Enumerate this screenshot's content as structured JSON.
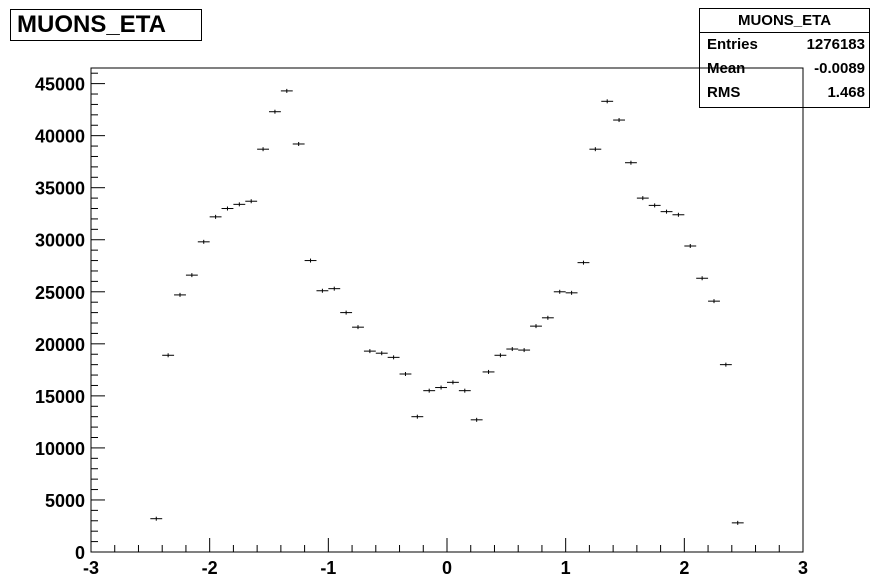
{
  "histogram": {
    "title": "MUONS_ETA",
    "stats": {
      "title": "MUONS_ETA",
      "rows": [
        {
          "label": "Entries",
          "value": "1276183"
        },
        {
          "label": "Mean",
          "value": "-0.0089"
        },
        {
          "label": "RMS",
          "value": "1.468"
        }
      ]
    }
  },
  "chart_data": {
    "type": "scatter",
    "title": "MUONS_ETA",
    "xlabel": "",
    "ylabel": "",
    "xlim": [
      -3,
      3
    ],
    "ylim": [
      0,
      46500
    ],
    "bin_width": 0.1,
    "x_ticks": [
      -3,
      -2,
      -1,
      0,
      1,
      2,
      3
    ],
    "y_ticks": [
      0,
      5000,
      10000,
      15000,
      20000,
      25000,
      30000,
      35000,
      40000,
      45000
    ],
    "grid": false,
    "series": [
      {
        "x": [
          -2.45,
          -2.35,
          -2.25,
          -2.15,
          -2.05,
          -1.95,
          -1.85,
          -1.75,
          -1.65,
          -1.55,
          -1.45,
          -1.35,
          -1.25,
          -1.15,
          -1.05,
          -0.95,
          -0.85,
          -0.75,
          -0.65,
          -0.55,
          -0.45,
          -0.35,
          -0.25,
          -0.15,
          -0.05,
          0.05,
          0.15,
          0.25,
          0.35,
          0.45,
          0.55,
          0.65,
          0.75,
          0.85,
          0.95,
          1.05,
          1.15,
          1.25,
          1.35,
          1.45,
          1.55,
          1.65,
          1.75,
          1.85,
          1.95,
          2.05,
          2.15,
          2.25,
          2.35,
          2.45
        ],
        "y": [
          3200,
          18900,
          24700,
          26600,
          29800,
          32200,
          33000,
          33400,
          33700,
          38700,
          42300,
          44300,
          39200,
          28000,
          25100,
          25300,
          23000,
          21600,
          19300,
          19100,
          18700,
          17100,
          13000,
          15500,
          15800,
          16300,
          15500,
          12700,
          17300,
          18900,
          19500,
          19400,
          21700,
          22500,
          25000,
          24900,
          27800,
          38700,
          43300,
          41500,
          37400,
          34000,
          33300,
          32700,
          32400,
          29400,
          26300,
          24100,
          18000,
          2800
        ]
      }
    ]
  }
}
